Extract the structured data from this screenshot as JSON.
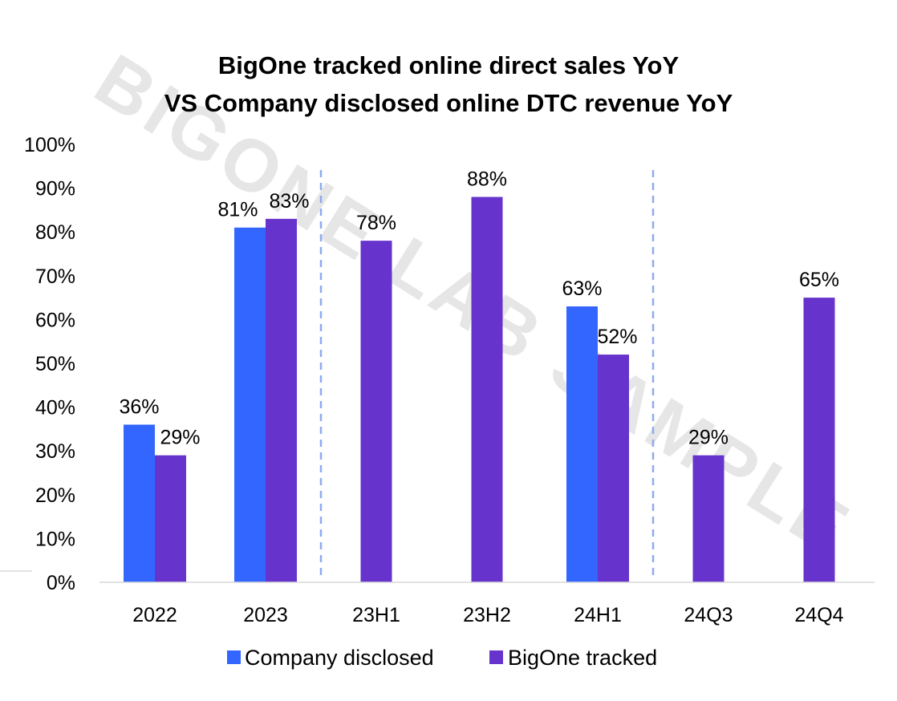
{
  "chart_data": {
    "type": "bar",
    "title": [
      "BigOne tracked online direct sales YoY",
      "VS Company disclosed online DTC revenue YoY"
    ],
    "categories": [
      "2022",
      "2023",
      "23H1",
      "23H2",
      "24H1",
      "24Q3",
      "24Q4"
    ],
    "series": [
      {
        "name": "Company disclosed",
        "color": "#3366ff",
        "values": [
          36,
          81,
          null,
          null,
          63,
          null,
          null
        ],
        "labels": [
          "36%",
          "81%",
          "",
          "",
          "63%",
          "",
          ""
        ]
      },
      {
        "name": "BigOne tracked",
        "color": "#6633cc",
        "values": [
          29,
          83,
          78,
          88,
          52,
          29,
          65
        ],
        "labels": [
          "29%",
          "83%",
          "78%",
          "88%",
          "52%",
          "29%",
          "65%"
        ]
      }
    ],
    "ylim": [
      0,
      100
    ],
    "yticks": [
      "0%",
      "10%",
      "20%",
      "30%",
      "40%",
      "50%",
      "60%",
      "70%",
      "80%",
      "90%",
      "100%"
    ],
    "dividers_after_category": [
      "2023",
      "24H1"
    ],
    "divider_color": "#8faaf0",
    "legend_position": "bottom",
    "grid": false,
    "watermark": "BIGONE LAB SAMPLE"
  }
}
